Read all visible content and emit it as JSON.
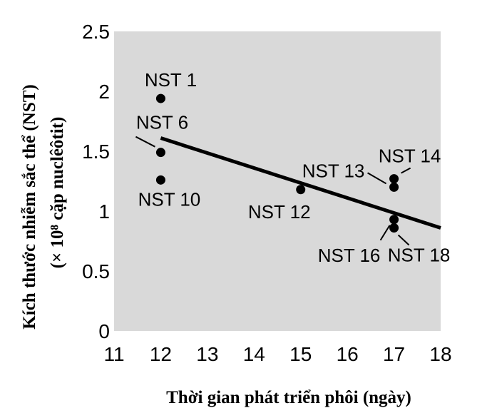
{
  "chart_data": {
    "type": "scatter",
    "xlabel": "Thời gian phát triển phôi (ngày)",
    "ylabel": "Kích thước nhiễm sắc thể (NST)",
    "ylabel_unit": "(× 10⁸ cặp nuclêôtit)",
    "xlim": [
      11,
      18
    ],
    "ylim": [
      0,
      2.5
    ],
    "x_ticks": [
      11,
      12,
      13,
      14,
      15,
      16,
      17,
      18
    ],
    "y_ticks": [
      {
        "value": 0,
        "label": "0"
      },
      {
        "value": 0.5,
        "label": "0.5"
      },
      {
        "value": 1,
        "label": "1"
      },
      {
        "value": 1.5,
        "label": "1.5"
      },
      {
        "value": 2,
        "label": "2"
      },
      {
        "value": 2.5,
        "label": "2.5"
      }
    ],
    "grid": false,
    "background_color": "#d9d9d9",
    "point_color": "#000000",
    "points": [
      {
        "label": "NST 1",
        "x": 12,
        "y": 1.94
      },
      {
        "label": "NST 6",
        "x": 12,
        "y": 1.49
      },
      {
        "label": "NST 10",
        "x": 12,
        "y": 1.26
      },
      {
        "label": "NST 12",
        "x": 15,
        "y": 1.18
      },
      {
        "label": "NST 13",
        "x": 17,
        "y": 1.2
      },
      {
        "label": "NST 14",
        "x": 17,
        "y": 1.27
      },
      {
        "label": "NST 16",
        "x": 17,
        "y": 0.93
      },
      {
        "label": "NST 18",
        "x": 17,
        "y": 0.86
      }
    ],
    "trendline": {
      "x": [
        12,
        18
      ],
      "y": [
        1.61,
        0.86
      ]
    }
  }
}
